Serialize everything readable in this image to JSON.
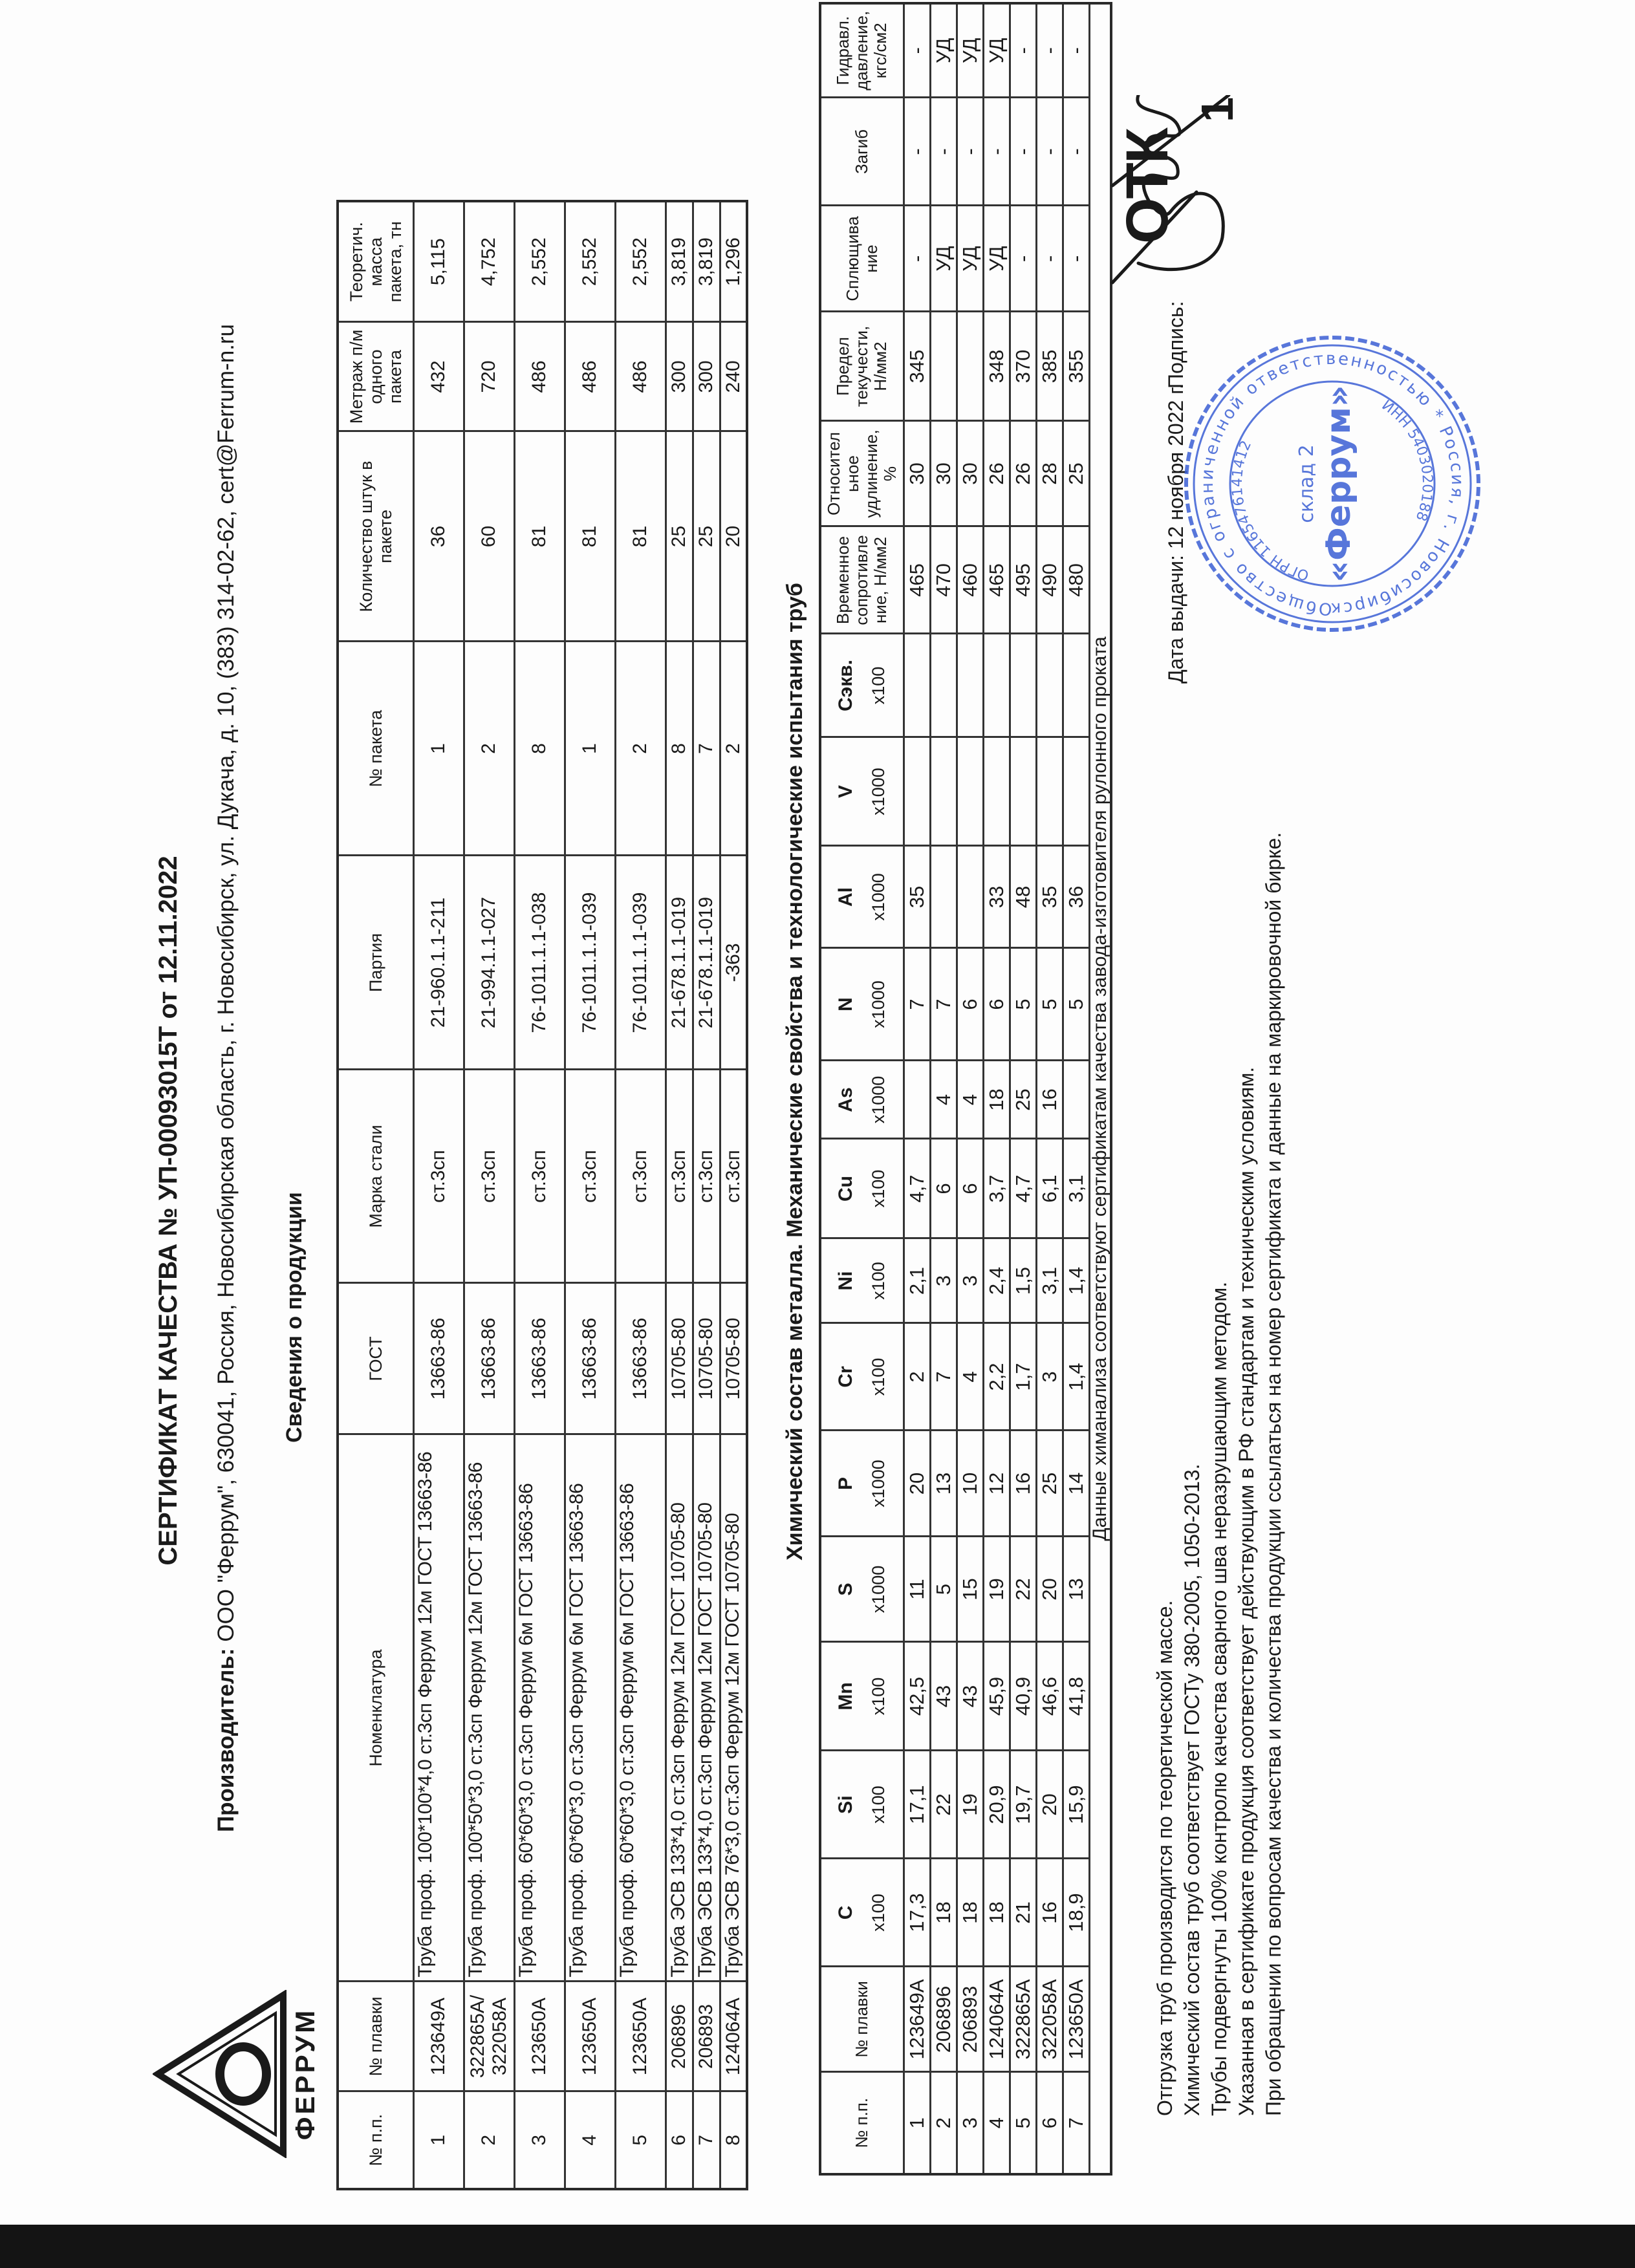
{
  "logo": {
    "text": "ФЕРРУМ"
  },
  "title": "СЕРТИФИКАТ КАЧЕСТВА № УП-00093015Т от 12.11.2022",
  "producer": {
    "label": "Производитель:",
    "value": " ООО \"Феррум\", 630041, Россия, Новосибирская область, г. Новосибирск, ул. Дукача, д. 10, (383) 314-02-62, cert@Ferrum-n.ru"
  },
  "products": {
    "section_title": "Сведения о продукции",
    "headers": [
      "№ п.п.",
      "№ плавки",
      "Номенклатура",
      "ГОСТ",
      "Марка стали",
      "Партия",
      "№ пакета",
      "Количество штук в пакете",
      "Метраж п/м одного пакета",
      "Теоретич. масса пакета, тн"
    ],
    "rows": [
      [
        "1",
        "123649А",
        "Труба проф. 100*100*4,0 ст.3сп Феррум 12м ГОСТ 13663-86",
        "13663-86",
        "ст.3сп",
        "21-960.1.1-211",
        "1",
        "36",
        "432",
        "5,115"
      ],
      [
        "2",
        "322865А/ 322058А",
        "Труба проф. 100*50*3,0 ст.3сп Феррум 12м ГОСТ 13663-86",
        "13663-86",
        "ст.3сп",
        "21-994.1.1-027",
        "2",
        "60",
        "720",
        "4,752"
      ],
      [
        "3",
        "123650А",
        "Труба проф. 60*60*3,0 ст.3сп Феррум 6м ГОСТ 13663-86",
        "13663-86",
        "ст.3сп",
        "76-1011.1.1-038",
        "8",
        "81",
        "486",
        "2,552"
      ],
      [
        "4",
        "123650А",
        "Труба проф. 60*60*3,0 ст.3сп Феррум 6м ГОСТ 13663-86",
        "13663-86",
        "ст.3сп",
        "76-1011.1.1-039",
        "1",
        "81",
        "486",
        "2,552"
      ],
      [
        "5",
        "123650А",
        "Труба проф. 60*60*3,0 ст.3сп Феррум 6м ГОСТ 13663-86",
        "13663-86",
        "ст.3сп",
        "76-1011.1.1-039",
        "2",
        "81",
        "486",
        "2,552"
      ],
      [
        "6",
        "206896",
        "Труба ЭСВ 133*4,0 ст.3сп Феррум 12м ГОСТ 10705-80",
        "10705-80",
        "ст.3сп",
        "21-678.1.1-019",
        "8",
        "25",
        "300",
        "3,819"
      ],
      [
        "7",
        "206893",
        "Труба ЭСВ 133*4,0 ст.3сп Феррум 12м ГОСТ 10705-80",
        "10705-80",
        "ст.3сп",
        "21-678.1.1-019",
        "7",
        "25",
        "300",
        "3,819"
      ],
      [
        "8",
        "124064А",
        "Труба ЭСВ 76*3,0 ст.3сп Феррум 12м ГОСТ 10705-80",
        "10705-80",
        "ст.3сп",
        "-363",
        "2",
        "20",
        "240",
        "1,296"
      ]
    ]
  },
  "chem": {
    "section_title": "Химический состав металла. Механические свойства  и технологические испытания труб",
    "headers": [
      {
        "label": "№ п.п."
      },
      {
        "label": "№ плавки"
      },
      {
        "label": "C",
        "unit": "x100"
      },
      {
        "label": "Si",
        "unit": "x100"
      },
      {
        "label": "Mn",
        "unit": "x100"
      },
      {
        "label": "S",
        "unit": "x1000"
      },
      {
        "label": "P",
        "unit": "x1000"
      },
      {
        "label": "Cr",
        "unit": "x100"
      },
      {
        "label": "Ni",
        "unit": "x100"
      },
      {
        "label": "Cu",
        "unit": "x100"
      },
      {
        "label": "As",
        "unit": "x1000"
      },
      {
        "label": "N",
        "unit": "x1000"
      },
      {
        "label": "Al",
        "unit": "x1000"
      },
      {
        "label": "V",
        "unit": "x1000"
      },
      {
        "label": "Сэкв.",
        "unit": "x100"
      },
      {
        "label": "Временное сопротивле ние, Н/мм2"
      },
      {
        "label": "Относител ьное удлинение, %"
      },
      {
        "label": "Предел текучести, Н/мм2"
      },
      {
        "label": "Сплющива ние"
      },
      {
        "label": "Загиб"
      },
      {
        "label": "Гидравл. давление, кгс/см2"
      }
    ],
    "rows": [
      [
        "1",
        "123649А",
        "17,3",
        "17,1",
        "42,5",
        "11",
        "20",
        "2",
        "2,1",
        "4,7",
        "",
        "7",
        "35",
        "",
        "",
        "465",
        "30",
        "345",
        "-",
        "-",
        "-"
      ],
      [
        "2",
        "206896",
        "18",
        "22",
        "43",
        "5",
        "13",
        "7",
        "3",
        "6",
        "4",
        "7",
        "",
        "",
        "",
        "470",
        "30",
        "",
        "УД",
        "-",
        "УД"
      ],
      [
        "3",
        "206893",
        "18",
        "19",
        "43",
        "15",
        "10",
        "4",
        "3",
        "6",
        "4",
        "6",
        "",
        "",
        "",
        "460",
        "30",
        "",
        "УД",
        "-",
        "УД"
      ],
      [
        "4",
        "124064А",
        "18",
        "20,9",
        "45,9",
        "19",
        "12",
        "2,2",
        "2,4",
        "3,7",
        "18",
        "6",
        "33",
        "",
        "",
        "465",
        "26",
        "348",
        "УД",
        "-",
        "УД"
      ],
      [
        "5",
        "322865А",
        "21",
        "19,7",
        "40,9",
        "22",
        "16",
        "1,7",
        "1,5",
        "4,7",
        "25",
        "5",
        "48",
        "",
        "",
        "495",
        "26",
        "370",
        "-",
        "-",
        "-"
      ],
      [
        "6",
        "322058А",
        "16",
        "20",
        "46,6",
        "20",
        "25",
        "3",
        "3,1",
        "6,1",
        "16",
        "5",
        "35",
        "",
        "",
        "490",
        "28",
        "385",
        "-",
        "-",
        "-"
      ],
      [
        "7",
        "123650А",
        "18,9",
        "15,9",
        "41,8",
        "13",
        "14",
        "1,4",
        "1,4",
        "3,1",
        "",
        "5",
        "36",
        "",
        "",
        "480",
        "25",
        "355",
        "-",
        "-",
        "-"
      ]
    ],
    "footer": "Данные химанализа соответствуют сертификатам качества завода-изготовителя рулонного проката"
  },
  "notes": [
    "Отгрузка труб производится по теоретической массе.",
    "Химический состав труб соответствует ГОСТу 380-2005, 1050-2013.",
    "Трубы подвергнуты 100% контролю качества сварного шва неразрушающим методом.",
    "Указанная в сертификате продукция соответствует действующим в РФ стандартам и техническим условиям.",
    "При обращении по вопросам качества и количества продукции ссылаться на номер сертификата и данные на маркировочной бирке."
  ],
  "issue": {
    "date_label": "Дата выдачи: 12 ноября 2022 г.",
    "signature_label": "Подпись:"
  },
  "stamp": {
    "outer_text": "Общество с ограниченной ответственностью * Россия, г. Новосибирск *",
    "ogrn": "ОГРН 1165476141412",
    "inn": "ИНН 5403020188",
    "warehouse": "склад 2",
    "name": "«Феррум»"
  },
  "otk": {
    "text": "ОТК",
    "number": "1"
  },
  "colors": {
    "stamp": "#3b5fd4",
    "ink": "#1a1a1a",
    "scan_edge": "#141414"
  }
}
